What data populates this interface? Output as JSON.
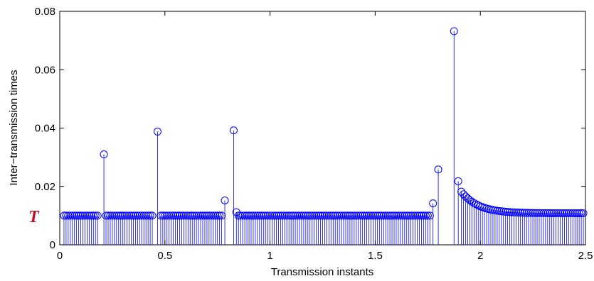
{
  "chart_data": {
    "type": "stem",
    "xlabel": "Transmission instants",
    "ylabel": "Inter−transmission times",
    "xlim": [
      0,
      2.5
    ],
    "ylim": [
      0,
      0.08
    ],
    "xticks": [
      "0",
      "0.5",
      "1",
      "1.5",
      "2",
      "2.5"
    ],
    "yticks": [
      "0",
      "0.02",
      "0.04",
      "0.06",
      "0.08"
    ],
    "annotation": "T",
    "annotation_value": 0.01,
    "color": "#0000ff",
    "grid": false,
    "baseline_value": 0.01,
    "regular_segments": [
      {
        "x_start": 0.02,
        "x_end": 0.18,
        "y": 0.01
      },
      {
        "x_start": 0.22,
        "x_end": 0.44,
        "y": 0.01
      },
      {
        "x_start": 0.48,
        "x_end": 0.77,
        "y": 0.01
      },
      {
        "x_start": 0.85,
        "x_end": 1.76,
        "y": 0.01
      }
    ],
    "spikes": [
      {
        "x": 0.21,
        "y": 0.031
      },
      {
        "x": 0.465,
        "y": 0.0388
      },
      {
        "x": 0.785,
        "y": 0.0152
      },
      {
        "x": 0.827,
        "y": 0.0392
      },
      {
        "x": 0.84,
        "y": 0.0112
      },
      {
        "x": 1.775,
        "y": 0.0142
      },
      {
        "x": 1.8,
        "y": 0.0258
      },
      {
        "x": 1.875,
        "y": 0.0732
      },
      {
        "x": 1.895,
        "y": 0.0218
      }
    ],
    "decay_segment": {
      "x_start": 1.91,
      "x_end": 2.49,
      "y_start": 0.0182,
      "y_end": 0.0108,
      "step": 0.01
    }
  }
}
